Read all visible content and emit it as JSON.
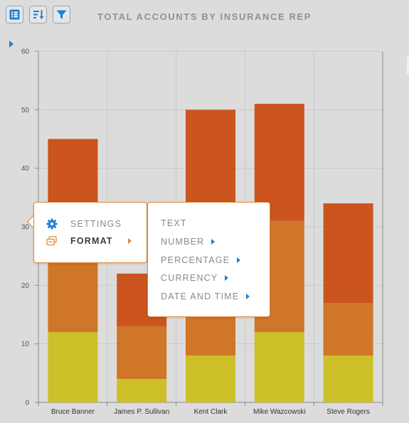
{
  "toolbar": {
    "buttons": [
      {
        "icon": "list-view-icon"
      },
      {
        "icon": "sort-icon"
      },
      {
        "icon": "filter-icon"
      }
    ]
  },
  "chart_data": {
    "type": "bar",
    "stacked": true,
    "title": "TOTAL ACCOUNTS BY INSURANCE REP",
    "xlabel": "",
    "ylabel": "",
    "categories": [
      "Bruce Banner",
      "James P. Sullivan",
      "Kent Clark",
      "Mike Wazcowski",
      "Steve Rogers"
    ],
    "series": [
      {
        "color": "#cdbf28",
        "values": [
          12,
          4,
          8,
          12,
          8
        ]
      },
      {
        "color": "#cf7628",
        "values": [
          12,
          9,
          12,
          19,
          9
        ]
      },
      {
        "color": "#cc541e",
        "values": [
          21,
          9,
          30,
          20,
          17
        ]
      }
    ],
    "ylim": [
      0,
      60
    ],
    "yticks": [
      0,
      10,
      20,
      30,
      40,
      50,
      60
    ],
    "grid": true,
    "legend": "none"
  },
  "context_menu": {
    "items": [
      {
        "label": "SETTINGS",
        "icon": "gear-icon"
      },
      {
        "label": "FORMAT",
        "icon": "format-icon",
        "active": true
      }
    ],
    "submenu": [
      {
        "label": "TEXT",
        "has_submenu": false
      },
      {
        "label": "NUMBER",
        "has_submenu": true
      },
      {
        "label": "PERCENTAGE",
        "has_submenu": true
      },
      {
        "label": "CURRENCY",
        "has_submenu": true
      },
      {
        "label": "DATE AND TIME",
        "has_submenu": true
      }
    ]
  },
  "colors": {
    "accent": "#1b7fd1",
    "menu_border": "#e08a3a",
    "format_icon": "#e08a3a"
  }
}
